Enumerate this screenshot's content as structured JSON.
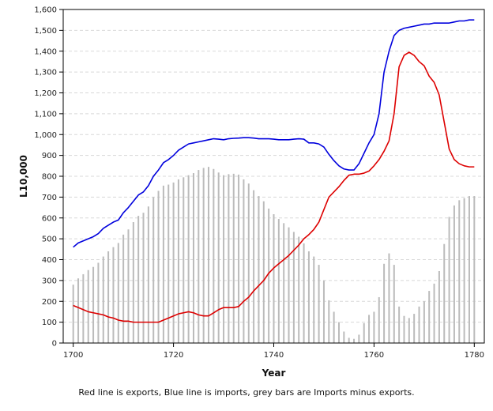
{
  "caption": "Red line is exports, Blue line is imports, grey bars are Imports minus exports.",
  "chart_data": {
    "type": "line",
    "title": "",
    "xlabel": "Year",
    "ylabel": "L10,000",
    "xlim": [
      1698,
      1782
    ],
    "ylim": [
      0,
      1600
    ],
    "x_ticks": [
      1700,
      1720,
      1740,
      1760,
      1780
    ],
    "x_tick_labels": [
      "1700",
      "1720",
      "1740",
      "1760",
      "1780"
    ],
    "y_ticks": [
      0,
      100,
      200,
      300,
      400,
      500,
      600,
      700,
      800,
      900,
      1000,
      1100,
      1200,
      1300,
      1400,
      1500,
      1600
    ],
    "y_tick_labels": [
      "0",
      "100",
      "200",
      "300",
      "400",
      "500",
      "600",
      "700",
      "800",
      "900",
      "1,000",
      "1,100",
      "1,200",
      "1,300",
      "1,400",
      "1,500",
      "1,600"
    ],
    "grid": "horizontal dashed",
    "x": [
      1700,
      1701,
      1702,
      1703,
      1704,
      1705,
      1706,
      1707,
      1708,
      1709,
      1710,
      1711,
      1712,
      1713,
      1714,
      1715,
      1716,
      1717,
      1718,
      1719,
      1720,
      1721,
      1722,
      1723,
      1724,
      1725,
      1726,
      1727,
      1728,
      1729,
      1730,
      1731,
      1732,
      1733,
      1734,
      1735,
      1736,
      1737,
      1738,
      1739,
      1740,
      1741,
      1742,
      1743,
      1744,
      1745,
      1746,
      1747,
      1748,
      1749,
      1750,
      1751,
      1752,
      1753,
      1754,
      1755,
      1756,
      1757,
      1758,
      1759,
      1760,
      1761,
      1762,
      1763,
      1764,
      1765,
      1766,
      1767,
      1768,
      1769,
      1770,
      1771,
      1772,
      1773,
      1774,
      1775,
      1776,
      1777,
      1778,
      1779,
      1780
    ],
    "series": [
      {
        "role": "imports",
        "color": "#0000dd",
        "values": [
          460,
          480,
          490,
          500,
          510,
          525,
          550,
          565,
          580,
          590,
          625,
          650,
          680,
          710,
          725,
          755,
          800,
          830,
          865,
          880,
          900,
          925,
          940,
          955,
          960,
          965,
          970,
          975,
          980,
          978,
          975,
          980,
          982,
          983,
          985,
          985,
          983,
          980,
          980,
          980,
          978,
          975,
          975,
          975,
          978,
          980,
          978,
          960,
          960,
          955,
          940,
          905,
          875,
          850,
          835,
          830,
          830,
          860,
          910,
          960,
          1000,
          1100,
          1300,
          1400,
          1475,
          1500,
          1510,
          1515,
          1520,
          1525,
          1530,
          1530,
          1535,
          1535,
          1535,
          1535,
          1540,
          1545,
          1545,
          1550,
          1550
        ]
      },
      {
        "role": "exports",
        "color": "#dd0000",
        "values": [
          180,
          170,
          160,
          150,
          145,
          140,
          135,
          125,
          120,
          110,
          105,
          105,
          100,
          100,
          100,
          100,
          100,
          100,
          110,
          120,
          130,
          140,
          145,
          150,
          145,
          135,
          130,
          130,
          145,
          160,
          170,
          170,
          170,
          175,
          200,
          220,
          250,
          275,
          300,
          335,
          360,
          380,
          400,
          420,
          445,
          470,
          500,
          520,
          545,
          580,
          640,
          700,
          725,
          750,
          780,
          805,
          810,
          810,
          815,
          825,
          850,
          880,
          920,
          970,
          1100,
          1325,
          1380,
          1395,
          1380,
          1350,
          1330,
          1280,
          1250,
          1190,
          1060,
          930,
          880,
          860,
          850,
          845,
          845
        ]
      },
      {
        "role": "imports minus exports",
        "type": "bar",
        "color": "#bbbbbb",
        "values": [
          280,
          310,
          330,
          350,
          365,
          385,
          415,
          440,
          460,
          480,
          520,
          545,
          580,
          610,
          625,
          655,
          700,
          730,
          755,
          760,
          770,
          785,
          795,
          805,
          815,
          830,
          840,
          845,
          835,
          818,
          805,
          810,
          812,
          808,
          785,
          765,
          733,
          705,
          680,
          645,
          618,
          595,
          575,
          555,
          533,
          510,
          478,
          440,
          415,
          375,
          300,
          205,
          150,
          100,
          55,
          25,
          20,
          40,
          95,
          135,
          150,
          220,
          380,
          430,
          375,
          175,
          130,
          120,
          140,
          175,
          200,
          250,
          285,
          345,
          475,
          605,
          660,
          685,
          695,
          705,
          705
        ]
      }
    ]
  }
}
